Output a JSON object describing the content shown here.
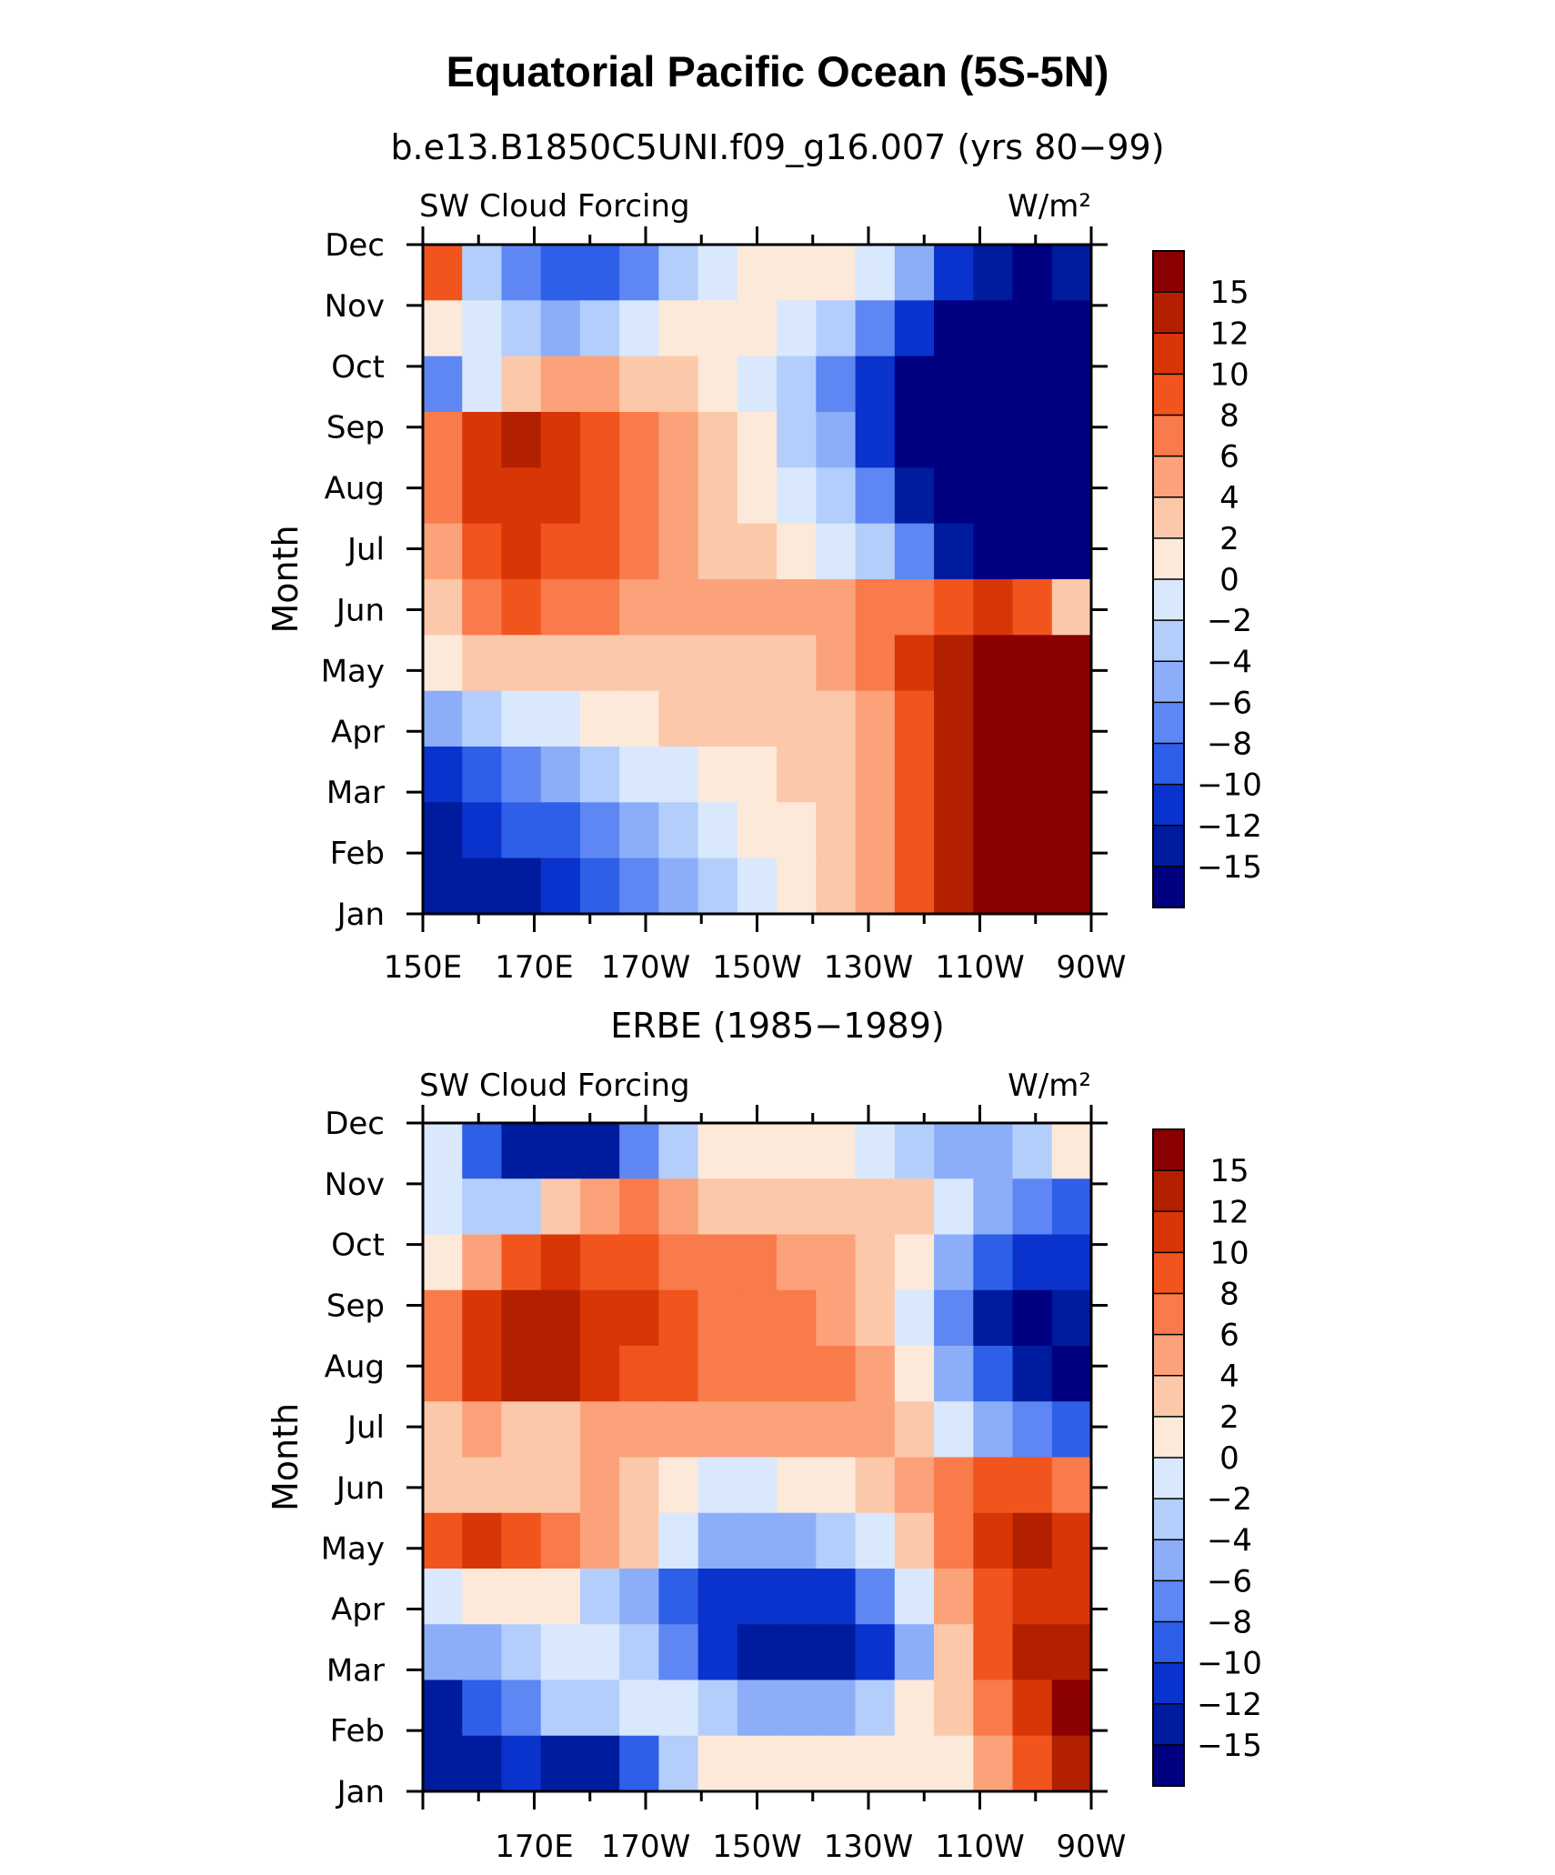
{
  "chart_data": {
    "type": "heatmap",
    "title": "Equatorial Pacific Ocean (5S-5N)",
    "colorbar": {
      "levels": [
        "15",
        "12",
        "10",
        "8",
        "6",
        "4",
        "2",
        "0",
        "−2",
        "−4",
        "−6",
        "−8",
        "−10",
        "−12",
        "−15"
      ],
      "colors": [
        "#8b0000",
        "#b22000",
        "#d93608",
        "#f2541e",
        "#f97a4a",
        "#fca27a",
        "#fcc8aa",
        "#fde9da",
        "#d9e8fd",
        "#b4cefb",
        "#8caef8",
        "#5e87f3",
        "#2e5fe8",
        "#0a32cc",
        "#001c9e",
        "#000080"
      ]
    },
    "panels": [
      {
        "subtitle": "b.e13.B1850C5UNI.f09_g16.007 (yrs 80−99)",
        "left_label": "SW Cloud Forcing",
        "right_label": "W/m²",
        "ylabel": "Month",
        "months": [
          "Dec",
          "Nov",
          "Oct",
          "Sep",
          "Aug",
          "Jul",
          "Jun",
          "May",
          "Apr",
          "Mar",
          "Feb",
          "Jan"
        ],
        "xticklabels": [
          "150E",
          "170E",
          "170W",
          "150W",
          "130W",
          "110W",
          "90W"
        ],
        "values": [
          [
            9,
            -3,
            -7,
            -9,
            -10,
            -7,
            -4,
            -2,
            1,
            1,
            1,
            -1,
            -6,
            -11,
            -14,
            -16,
            -13
          ],
          [
            1,
            -2,
            -4,
            -5,
            -4,
            -2,
            0,
            1,
            1,
            -1,
            -3,
            -7,
            -12,
            -16,
            -17,
            -17,
            -16
          ],
          [
            -8,
            -2,
            3,
            5,
            4,
            3,
            2,
            1,
            -1,
            -4,
            -7,
            -12,
            -16,
            -17,
            -17,
            -17,
            -17
          ],
          [
            6,
            10,
            12,
            10,
            8,
            6,
            4,
            2,
            0,
            -3,
            -6,
            -11,
            -16,
            -17,
            -17,
            -17,
            -17
          ],
          [
            7,
            10,
            11,
            10,
            8,
            6,
            4,
            2,
            1,
            -2,
            -4,
            -8,
            -14,
            -17,
            -17,
            -17,
            -17
          ],
          [
            4,
            8,
            10,
            9,
            8,
            6,
            4,
            3,
            2,
            1,
            -1,
            -3,
            -8,
            -13,
            -16,
            -17,
            -16
          ],
          [
            2,
            7,
            8,
            7,
            6,
            5,
            4,
            4,
            5,
            4,
            5,
            6,
            7,
            8,
            10,
            8,
            2
          ],
          [
            1,
            2,
            2,
            2,
            3,
            3,
            3,
            3,
            3,
            3,
            4,
            7,
            10,
            13,
            16,
            18,
            18
          ],
          [
            -6,
            -3,
            -1,
            -1,
            0,
            1,
            2,
            2,
            2,
            3,
            3,
            5,
            9,
            13,
            17,
            18,
            18
          ],
          [
            -11,
            -9,
            -7,
            -5,
            -3,
            -2,
            -1,
            1,
            1,
            2,
            3,
            5,
            9,
            13,
            17,
            18,
            18
          ],
          [
            -13,
            -12,
            -10,
            -9,
            -8,
            -6,
            -4,
            -2,
            0,
            1,
            3,
            5,
            9,
            13,
            16,
            18,
            18
          ],
          [
            -14,
            -13,
            -13,
            -12,
            -10,
            -7,
            -6,
            -3,
            -1,
            1,
            2,
            5,
            9,
            13,
            16,
            18,
            18
          ]
        ]
      },
      {
        "subtitle": "ERBE (1985−1989)",
        "left_label": "SW Cloud Forcing",
        "right_label": "W/m²",
        "ylabel": "Month",
        "months": [
          "Dec",
          "Nov",
          "Oct",
          "Sep",
          "Aug",
          "Jul",
          "Jun",
          "May",
          "Apr",
          "Mar",
          "Feb",
          "Jan"
        ],
        "xticklabels": [
          "170E",
          "170W",
          "150W",
          "130W",
          "110W",
          "90W"
        ],
        "values": [
          [
            -2,
            -10,
            -14,
            -15,
            -13,
            -7,
            -3,
            0,
            1,
            1,
            0,
            -1,
            -4,
            -5,
            -5,
            -3,
            1
          ],
          [
            -1,
            -4,
            -3,
            2,
            4,
            6,
            5,
            3,
            2,
            3,
            2,
            2,
            3,
            -1,
            -6,
            -8,
            -10
          ],
          [
            1,
            5,
            8,
            10,
            9,
            8,
            6,
            6,
            7,
            5,
            4,
            2,
            0,
            -5,
            -10,
            -11,
            -12
          ],
          [
            6,
            10,
            12,
            12,
            11,
            10,
            8,
            7,
            7,
            6,
            5,
            3,
            -1,
            -8,
            -14,
            -16,
            -15
          ],
          [
            6,
            10,
            12,
            12,
            11,
            9,
            8,
            7,
            7,
            7,
            6,
            4,
            0,
            -5,
            -10,
            -14,
            -16
          ],
          [
            3,
            4,
            3,
            3,
            4,
            5,
            4,
            4,
            4,
            5,
            5,
            4,
            2,
            -1,
            -5,
            -8,
            -10
          ],
          [
            2,
            3,
            3,
            3,
            4,
            3,
            0,
            -2,
            -1,
            0,
            1,
            3,
            5,
            7,
            9,
            9,
            7
          ],
          [
            8,
            10,
            9,
            6,
            4,
            2,
            -2,
            -5,
            -6,
            -5,
            -4,
            -1,
            3,
            7,
            10,
            12,
            11
          ],
          [
            -2,
            0,
            1,
            0,
            -3,
            -6,
            -9,
            -11,
            -12,
            -12,
            -11,
            -8,
            -2,
            4,
            8,
            10,
            10
          ],
          [
            -6,
            -5,
            -3,
            -2,
            -1,
            -4,
            -8,
            -11,
            -13,
            -14,
            -14,
            -11,
            -5,
            2,
            8,
            12,
            14
          ],
          [
            -13,
            -10,
            -7,
            -4,
            -3,
            -1,
            -2,
            -4,
            -6,
            -6,
            -5,
            -3,
            0,
            3,
            7,
            11,
            15
          ],
          [
            -15,
            -14,
            -12,
            -14,
            -13,
            -10,
            -3,
            0,
            1,
            1,
            1,
            0,
            0,
            1,
            4,
            8,
            12
          ]
        ]
      }
    ]
  }
}
